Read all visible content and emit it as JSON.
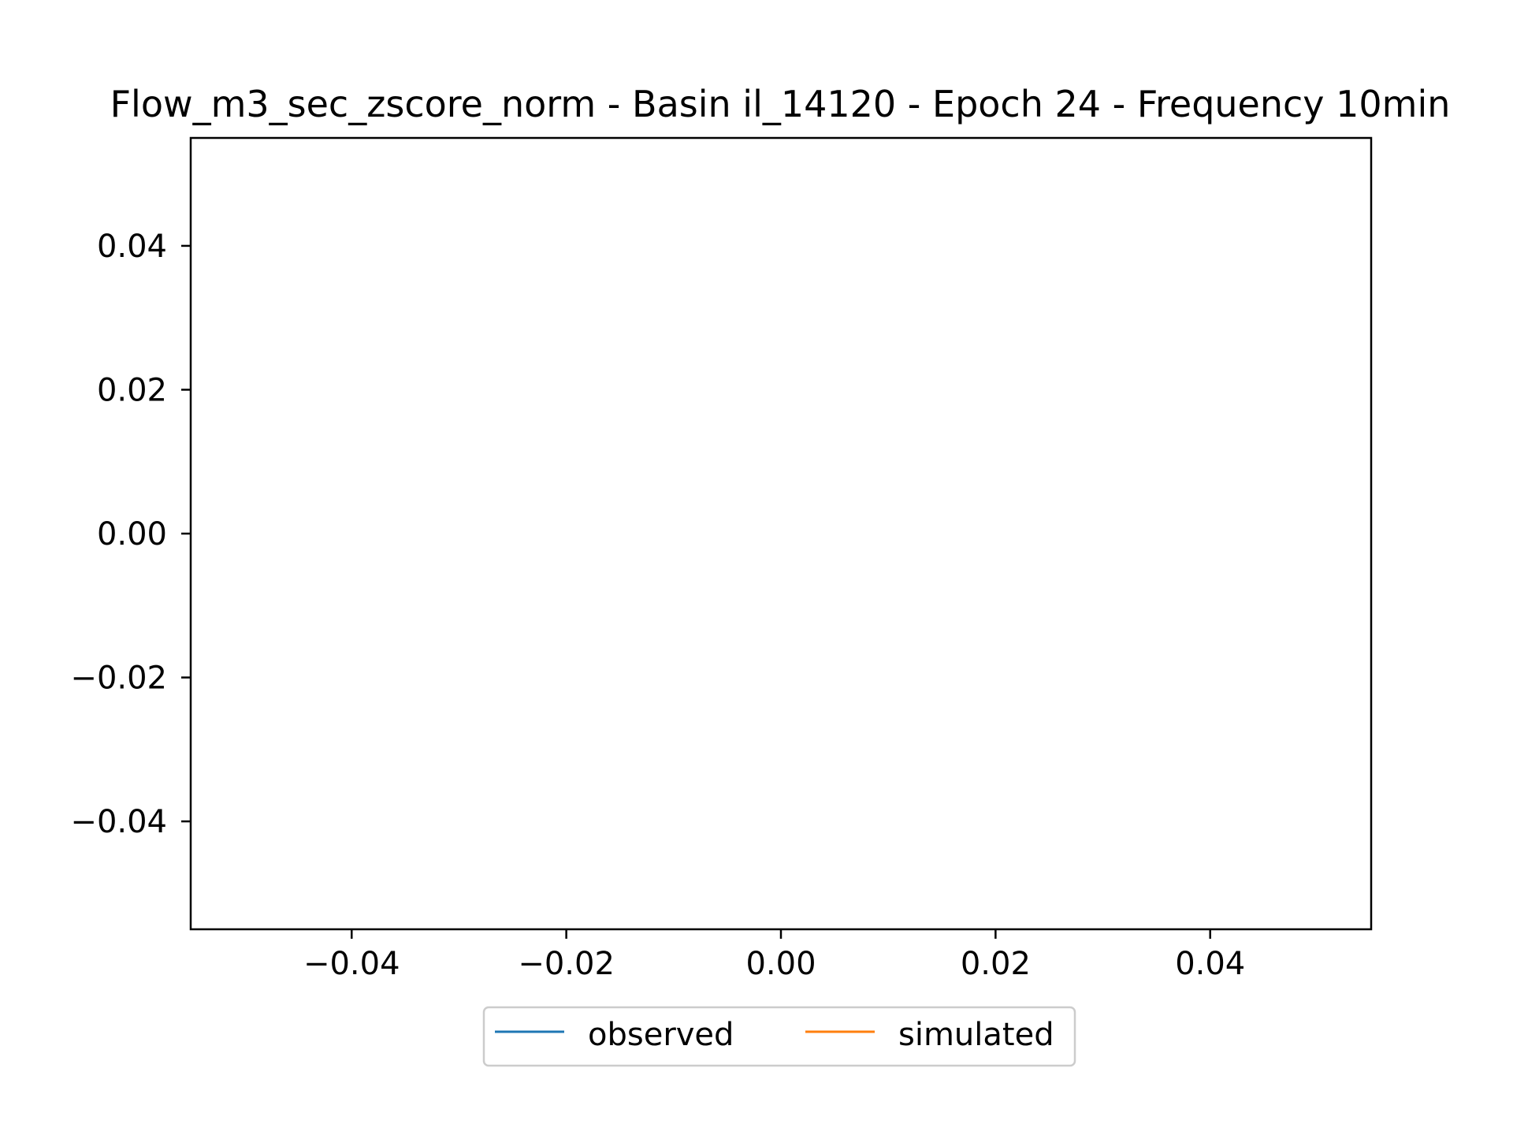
{
  "chart_data": {
    "type": "line",
    "title": "Flow_m3_sec_zscore_norm - Basin il_14120 - Epoch 24 - Frequency 10min",
    "xlabel": "",
    "ylabel": "",
    "xlim": [
      -0.055,
      0.055
    ],
    "ylim": [
      -0.055,
      0.055
    ],
    "x_ticks": [
      {
        "value": -0.04,
        "label": "−0.04"
      },
      {
        "value": -0.02,
        "label": "−0.02"
      },
      {
        "value": 0.0,
        "label": "0.00"
      },
      {
        "value": 0.02,
        "label": "0.02"
      },
      {
        "value": 0.04,
        "label": "0.04"
      }
    ],
    "y_ticks": [
      {
        "value": 0.04,
        "label": "0.04"
      },
      {
        "value": 0.02,
        "label": "0.02"
      },
      {
        "value": 0.0,
        "label": "0.00"
      },
      {
        "value": -0.02,
        "label": "−0.02"
      },
      {
        "value": -0.04,
        "label": "−0.04"
      }
    ],
    "grid": false,
    "legend_position": "bottom-center",
    "series": [
      {
        "name": "observed",
        "color": "#1f77b4",
        "x": [],
        "y": []
      },
      {
        "name": "simulated",
        "color": "#ff7f0e",
        "x": [],
        "y": []
      }
    ]
  }
}
